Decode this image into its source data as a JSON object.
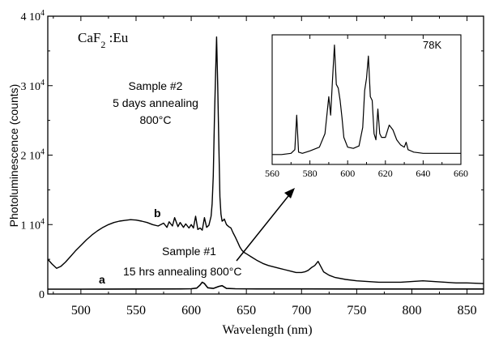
{
  "chart_data": [
    {
      "type": "line",
      "xlabel": "Wavelength (nm)",
      "ylabel": "Photoluminescence (counts)",
      "xlim": [
        470,
        865
      ],
      "ylim": [
        0,
        40000
      ],
      "x_ticks": [
        500,
        550,
        600,
        650,
        700,
        750,
        800,
        850
      ],
      "y_ticks": [
        {
          "value": 0,
          "label": "0"
        },
        {
          "value": 10000,
          "label": "1 10",
          "exp": "4"
        },
        {
          "value": 20000,
          "label": "2 10",
          "exp": "4"
        },
        {
          "value": 30000,
          "label": "3 10",
          "exp": "4"
        },
        {
          "value": 40000,
          "label": "4 10",
          "exp": "4"
        }
      ],
      "series": [
        {
          "name": "b",
          "x": [
            470,
            474,
            478,
            482,
            486,
            490,
            495,
            500,
            505,
            510,
            515,
            520,
            525,
            530,
            535,
            540,
            545,
            550,
            555,
            560,
            565,
            570,
            575,
            578,
            580,
            583,
            585,
            588,
            590,
            593,
            595,
            598,
            600,
            602,
            604,
            606,
            608,
            610,
            612,
            614,
            616,
            618,
            619,
            620,
            621,
            622,
            623,
            624,
            625,
            626,
            627,
            628,
            629,
            630,
            632,
            634,
            636,
            638,
            640,
            642,
            644,
            646,
            648,
            650,
            655,
            660,
            665,
            670,
            675,
            680,
            685,
            690,
            695,
            700,
            703,
            706,
            709,
            712,
            715,
            718,
            720,
            725,
            730,
            740,
            750,
            760,
            770,
            780,
            790,
            800,
            810,
            820,
            830,
            840,
            850,
            865
          ],
          "y": [
            5000,
            4300,
            3700,
            4000,
            4600,
            5300,
            6200,
            7000,
            7800,
            8500,
            9100,
            9600,
            10000,
            10300,
            10500,
            10600,
            10700,
            10650,
            10500,
            10300,
            10000,
            9800,
            10200,
            9600,
            10400,
            9800,
            11000,
            9700,
            10300,
            9600,
            10100,
            9500,
            10000,
            9500,
            11200,
            9300,
            9500,
            9200,
            11000,
            9600,
            9900,
            11200,
            13000,
            17000,
            25000,
            31000,
            37000,
            30000,
            22000,
            14000,
            11500,
            10500,
            10600,
            10800,
            10000,
            9700,
            9500,
            8800,
            8200,
            7500,
            6800,
            6300,
            6000,
            5800,
            5300,
            4800,
            4400,
            4100,
            3900,
            3700,
            3500,
            3300,
            3100,
            3100,
            3200,
            3400,
            3800,
            4100,
            4700,
            3800,
            3200,
            2700,
            2400,
            2100,
            1900,
            1800,
            1700,
            1700,
            1700,
            1800,
            1900,
            1800,
            1700,
            1600,
            1600,
            1500
          ]
        },
        {
          "name": "a",
          "x": [
            470,
            500,
            550,
            590,
            600,
            605,
            608,
            610,
            612,
            615,
            620,
            625,
            628,
            632,
            640,
            660,
            700,
            750,
            800,
            865
          ],
          "y": [
            700,
            700,
            720,
            740,
            760,
            850,
            1300,
            1700,
            1500,
            900,
            800,
            1100,
            1200,
            800,
            760,
            740,
            730,
            720,
            720,
            720
          ]
        }
      ],
      "annotations": {
        "compound": "CaF",
        "compound_sub": "2",
        "compound_suffix": " :Eu",
        "sample2_line1": "Sample #2",
        "sample2_line2": "5 days annealing",
        "sample2_line3": "800°C",
        "label_b": "b",
        "label_a": "a",
        "sample1_line1": "Sample #1",
        "sample1_line2": "15 hrs annealing 800°C"
      }
    },
    {
      "type": "line",
      "title": "78K",
      "xlim": [
        560,
        660
      ],
      "x_ticks": [
        560,
        580,
        600,
        620,
        640,
        660
      ],
      "series": [
        {
          "name": "78K",
          "x": [
            560,
            565,
            570,
            572,
            573,
            574,
            576,
            580,
            585,
            588,
            590,
            591,
            592,
            593,
            594,
            595,
            596,
            597,
            598,
            600,
            603,
            606,
            608,
            609,
            610,
            611,
            612,
            613,
            614,
            615,
            616,
            617,
            618,
            620,
            622,
            624,
            626,
            628,
            630,
            631,
            632,
            635,
            640,
            645,
            650,
            655,
            660
          ],
          "y": [
            0.08,
            0.08,
            0.09,
            0.12,
            0.4,
            0.1,
            0.09,
            0.11,
            0.14,
            0.25,
            0.55,
            0.4,
            0.7,
            0.97,
            0.65,
            0.62,
            0.52,
            0.38,
            0.22,
            0.14,
            0.13,
            0.15,
            0.3,
            0.6,
            0.7,
            0.88,
            0.55,
            0.52,
            0.25,
            0.2,
            0.45,
            0.25,
            0.22,
            0.22,
            0.32,
            0.28,
            0.2,
            0.16,
            0.14,
            0.18,
            0.12,
            0.1,
            0.09,
            0.09,
            0.09,
            0.09,
            0.09
          ]
        }
      ]
    }
  ]
}
